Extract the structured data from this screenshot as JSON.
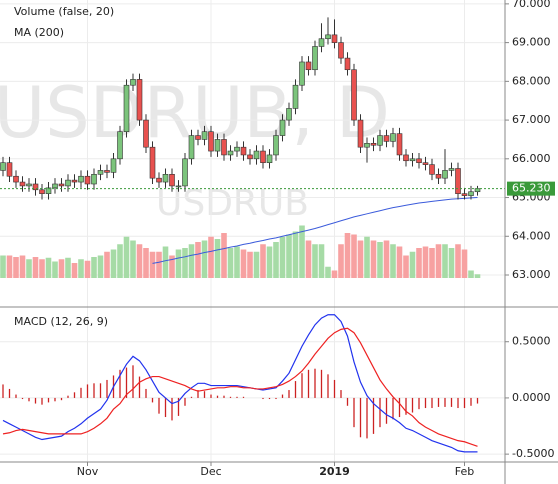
{
  "chart_data": [
    {
      "type": "candlestick",
      "legend": [
        "Volume (false, 20)",
        "MA (200)"
      ],
      "watermark": "USDRUB, D",
      "watermark_small": "USDRUB",
      "categories": [
        null,
        null,
        null,
        null,
        null,
        null,
        null,
        null,
        null,
        null,
        null,
        null,
        null,
        "Nov",
        null,
        null,
        null,
        null,
        null,
        null,
        null,
        null,
        null,
        null,
        null,
        null,
        null,
        null,
        null,
        null,
        null,
        null,
        "Dec",
        null,
        null,
        null,
        null,
        null,
        null,
        null,
        null,
        null,
        null,
        null,
        null,
        null,
        null,
        null,
        null,
        null,
        null,
        "2019",
        null,
        null,
        null,
        null,
        null,
        null,
        null,
        null,
        null,
        null,
        null,
        null,
        null,
        null,
        null,
        null,
        null,
        null,
        null,
        "Feb",
        null,
        null
      ],
      "open": [
        65.7,
        65.9,
        65.55,
        65.4,
        65.3,
        65.35,
        65.2,
        65.1,
        65.25,
        65.35,
        65.3,
        65.45,
        65.4,
        65.55,
        65.35,
        65.6,
        65.7,
        65.65,
        66.0,
        66.7,
        67.9,
        68.05,
        67.0,
        66.3,
        65.5,
        65.4,
        65.6,
        65.3,
        65.3,
        66.0,
        66.6,
        66.5,
        66.7,
        66.2,
        66.5,
        66.1,
        66.2,
        66.3,
        66.1,
        66.0,
        66.2,
        65.9,
        66.1,
        66.6,
        67.0,
        67.3,
        67.9,
        68.5,
        68.3,
        68.9,
        69.1,
        69.2,
        69.0,
        68.6,
        68.3,
        67.0,
        66.3,
        66.4,
        66.35,
        66.6,
        66.45,
        66.65,
        66.1,
        65.95,
        66.0,
        65.9,
        65.85,
        65.6,
        65.5,
        65.7,
        65.75,
        65.1,
        65.05,
        65.15
      ],
      "high": [
        66.05,
        66.05,
        65.7,
        65.55,
        65.5,
        65.5,
        65.35,
        65.4,
        65.5,
        65.5,
        65.6,
        65.6,
        65.7,
        65.7,
        65.75,
        65.85,
        65.85,
        66.15,
        66.85,
        68.05,
        68.2,
        68.2,
        67.15,
        66.45,
        65.65,
        65.75,
        65.75,
        65.45,
        66.15,
        66.75,
        66.75,
        66.85,
        66.85,
        66.65,
        66.65,
        66.35,
        66.45,
        66.45,
        66.25,
        66.35,
        66.35,
        66.25,
        66.75,
        67.15,
        67.45,
        68.05,
        68.65,
        68.65,
        69.05,
        69.5,
        69.65,
        69.6,
        69.15,
        68.75,
        68.45,
        67.15,
        66.55,
        66.55,
        66.75,
        66.75,
        66.8,
        66.8,
        66.25,
        66.15,
        66.15,
        66.05,
        66.0,
        65.75,
        66.25,
        65.9,
        65.9,
        65.25,
        65.3,
        65.3
      ],
      "low": [
        65.55,
        65.4,
        65.25,
        65.15,
        65.15,
        65.05,
        64.95,
        64.95,
        65.1,
        65.15,
        65.15,
        65.25,
        65.25,
        65.2,
        65.2,
        65.45,
        65.5,
        65.5,
        65.85,
        66.55,
        67.75,
        66.85,
        66.15,
        65.35,
        65.25,
        65.25,
        65.15,
        65.15,
        65.15,
        65.85,
        66.35,
        66.35,
        66.05,
        66.05,
        65.95,
        65.95,
        66.05,
        65.95,
        65.85,
        65.85,
        65.75,
        65.75,
        65.95,
        66.45,
        66.85,
        67.15,
        67.75,
        68.15,
        68.15,
        68.75,
        68.95,
        68.85,
        68.45,
        68.15,
        66.85,
        66.15,
        65.9,
        66.2,
        66.2,
        66.3,
        66.3,
        65.95,
        65.8,
        65.8,
        65.75,
        65.7,
        65.45,
        65.35,
        65.35,
        65.55,
        64.95,
        64.95,
        64.95,
        65.05
      ],
      "close": [
        65.9,
        65.55,
        65.4,
        65.3,
        65.35,
        65.2,
        65.1,
        65.25,
        65.35,
        65.3,
        65.45,
        65.4,
        65.55,
        65.35,
        65.6,
        65.7,
        65.65,
        66.0,
        66.7,
        67.9,
        68.05,
        67.0,
        66.3,
        65.5,
        65.4,
        65.6,
        65.3,
        65.3,
        66.0,
        66.6,
        66.5,
        66.7,
        66.2,
        66.5,
        66.1,
        66.2,
        66.3,
        66.1,
        66.0,
        66.2,
        65.9,
        66.1,
        66.6,
        67.0,
        67.3,
        67.9,
        68.5,
        68.3,
        68.9,
        69.1,
        69.2,
        69.0,
        68.6,
        68.3,
        67.0,
        66.3,
        66.4,
        66.35,
        66.6,
        66.45,
        66.65,
        66.1,
        65.95,
        66.0,
        65.9,
        65.85,
        65.6,
        65.5,
        65.7,
        65.75,
        65.1,
        65.05,
        65.15,
        65.23
      ],
      "volume": [
        30,
        30,
        28,
        30,
        25,
        28,
        25,
        27,
        22,
        25,
        27,
        20,
        25,
        23,
        28,
        30,
        35,
        38,
        45,
        55,
        50,
        45,
        40,
        35,
        35,
        42,
        30,
        38,
        40,
        45,
        48,
        50,
        55,
        52,
        60,
        40,
        42,
        38,
        35,
        35,
        45,
        42,
        48,
        55,
        58,
        62,
        70,
        50,
        45,
        45,
        15,
        10,
        45,
        60,
        58,
        50,
        55,
        50,
        48,
        50,
        45,
        42,
        30,
        35,
        40,
        42,
        40,
        45,
        45,
        40,
        45,
        38,
        10,
        5
      ],
      "volume_lim": [
        0,
        100
      ],
      "ma": {
        "name": "MA (200)",
        "color": "#3b5bdb",
        "values": [
          null,
          null,
          null,
          null,
          null,
          null,
          null,
          null,
          null,
          null,
          null,
          null,
          null,
          null,
          null,
          null,
          null,
          null,
          null,
          null,
          null,
          null,
          null,
          63.3,
          63.33,
          63.37,
          63.4,
          63.44,
          63.47,
          63.51,
          63.54,
          63.58,
          63.61,
          63.65,
          63.68,
          63.72,
          63.75,
          63.79,
          63.82,
          63.86,
          63.89,
          63.93,
          63.96,
          64.0,
          64.04,
          64.08,
          64.12,
          64.16,
          64.2,
          64.25,
          64.3,
          64.35,
          64.4,
          64.45,
          64.5,
          64.54,
          64.58,
          64.62,
          64.66,
          64.7,
          64.74,
          64.77,
          64.8,
          64.83,
          64.86,
          64.88,
          64.9,
          64.92,
          64.94,
          64.96,
          64.97,
          64.98,
          64.99,
          65.0
        ]
      },
      "up_color": "#7cc47c",
      "down_color": "#e8514f",
      "volume_up_color": "#a6dba6",
      "volume_down_color": "#f7a1a1",
      "last_price": {
        "value": 65.23,
        "label": "65.230"
      },
      "ylim": [
        62.2,
        70.1
      ],
      "yticks": [
        {
          "value": 70,
          "label": "70.000"
        },
        {
          "value": 69,
          "label": "69.000"
        },
        {
          "value": 68,
          "label": "68.000"
        },
        {
          "value": 67,
          "label": "67.000"
        },
        {
          "value": 66,
          "label": "66.000"
        },
        {
          "value": 65,
          "label": "65.000"
        },
        {
          "value": 64,
          "label": "64.000"
        },
        {
          "value": 63,
          "label": "63.000"
        }
      ],
      "grid": true
    },
    {
      "type": "macd",
      "title": "MACD (12, 26, 9)",
      "series": [
        {
          "name": "MACD",
          "color": "#2233ee",
          "values": [
            -0.2,
            -0.23,
            -0.26,
            -0.29,
            -0.32,
            -0.35,
            -0.37,
            -0.36,
            -0.35,
            -0.34,
            -0.3,
            -0.27,
            -0.23,
            -0.18,
            -0.14,
            -0.1,
            -0.02,
            0.1,
            0.2,
            0.3,
            0.37,
            0.33,
            0.25,
            0.15,
            0.05,
            0.0,
            -0.05,
            -0.03,
            0.04,
            0.09,
            0.13,
            0.13,
            0.11,
            0.11,
            0.11,
            0.11,
            0.11,
            0.1,
            0.09,
            0.08,
            0.07,
            0.08,
            0.09,
            0.15,
            0.22,
            0.34,
            0.46,
            0.56,
            0.65,
            0.71,
            0.74,
            0.74,
            0.68,
            0.55,
            0.32,
            0.14,
            0.02,
            -0.05,
            -0.1,
            -0.15,
            -0.18,
            -0.22,
            -0.27,
            -0.29,
            -0.32,
            -0.35,
            -0.38,
            -0.4,
            -0.42,
            -0.44,
            -0.47,
            -0.48,
            -0.48,
            -0.48
          ]
        },
        {
          "name": "Signal",
          "color": "#ee2222",
          "values": [
            -0.32,
            -0.31,
            -0.29,
            -0.28,
            -0.29,
            -0.3,
            -0.31,
            -0.32,
            -0.32,
            -0.32,
            -0.32,
            -0.32,
            -0.32,
            -0.3,
            -0.27,
            -0.23,
            -0.18,
            -0.1,
            -0.05,
            0.03,
            0.08,
            0.14,
            0.17,
            0.19,
            0.19,
            0.17,
            0.15,
            0.13,
            0.11,
            0.08,
            0.06,
            0.07,
            0.08,
            0.09,
            0.09,
            0.1,
            0.1,
            0.09,
            0.09,
            0.08,
            0.08,
            0.09,
            0.1,
            0.12,
            0.15,
            0.19,
            0.24,
            0.31,
            0.39,
            0.46,
            0.53,
            0.58,
            0.61,
            0.62,
            0.58,
            0.49,
            0.38,
            0.27,
            0.16,
            0.08,
            0.01,
            -0.05,
            -0.12,
            -0.16,
            -0.22,
            -0.26,
            -0.29,
            -0.32,
            -0.34,
            -0.36,
            -0.38,
            -0.39,
            -0.41,
            -0.43
          ]
        }
      ],
      "histogram": {
        "color": "#cc2222",
        "values": [
          0.12,
          0.08,
          0.03,
          -0.01,
          -0.03,
          -0.05,
          -0.06,
          -0.04,
          -0.03,
          -0.02,
          0.02,
          0.05,
          0.09,
          0.12,
          0.13,
          0.13,
          0.16,
          0.2,
          0.25,
          0.27,
          0.29,
          0.19,
          0.08,
          -0.04,
          -0.14,
          -0.17,
          -0.2,
          -0.16,
          -0.07,
          0.01,
          0.07,
          0.06,
          0.03,
          0.02,
          0.02,
          0.01,
          0.01,
          0.01,
          0.0,
          0.0,
          -0.01,
          -0.01,
          -0.01,
          0.03,
          0.07,
          0.15,
          0.22,
          0.25,
          0.26,
          0.25,
          0.21,
          0.16,
          0.07,
          -0.07,
          -0.26,
          -0.35,
          -0.36,
          -0.32,
          -0.26,
          -0.23,
          -0.19,
          -0.17,
          -0.15,
          -0.13,
          -0.1,
          -0.09,
          -0.09,
          -0.08,
          -0.08,
          -0.08,
          -0.09,
          -0.09,
          -0.07,
          -0.05
        ]
      },
      "ylim": [
        -0.57,
        0.8
      ],
      "yticks": [
        {
          "value": 0.5,
          "label": "0.5000"
        },
        {
          "value": 0,
          "label": "0.0000"
        },
        {
          "value": -0.5,
          "label": "-0.5000"
        }
      ]
    }
  ]
}
